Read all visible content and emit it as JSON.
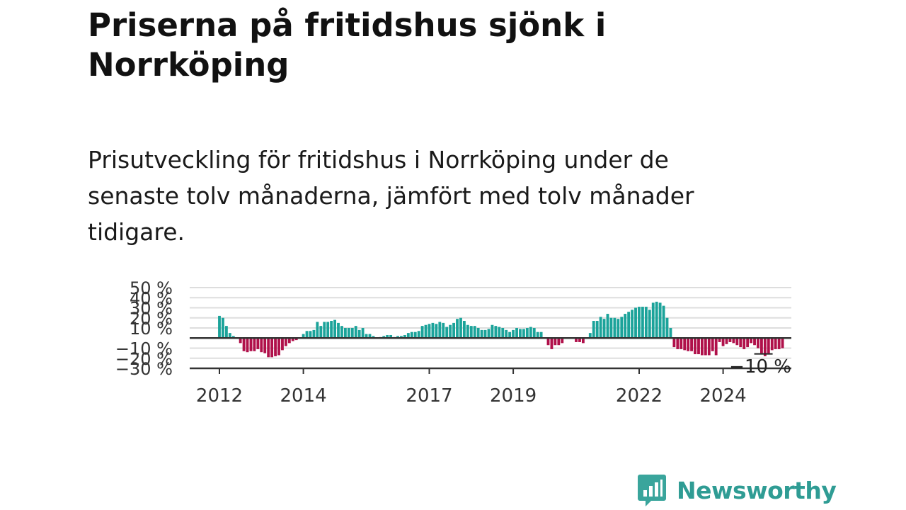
{
  "title": "Priserna på fritidshus sjönk i Norrköping",
  "subtitle": "Prisutveckling för fritidshus i Norrköping under de senaste tolv månaderna, jämfört med tolv månader tidigare.",
  "brand": {
    "name": "Newsworthy",
    "icon": "newsworthy-logo-icon",
    "color": "#3aa59c"
  },
  "colors": {
    "positive": "#1ba39a",
    "negative": "#b0104a",
    "zero_line": "#333333",
    "grid": "#dddddd"
  },
  "chart_data": {
    "type": "bar",
    "ylim": [
      -30,
      50
    ],
    "yticks": [
      -30,
      -20,
      -10,
      10,
      20,
      30,
      40,
      50
    ],
    "ytick_labels": [
      "−30 %",
      "−20 %",
      "−10 %",
      "10 %",
      "20 %",
      "30 %",
      "40 %",
      "50 %"
    ],
    "xticks": [
      2012,
      2014,
      2017,
      2019,
      2022,
      2024
    ],
    "x_start": 2012.0,
    "x_step": 0.08333,
    "last_value_label": "−10 %",
    "grid": true,
    "values": [
      22,
      20,
      12,
      5,
      2,
      0,
      -5,
      -13,
      -14,
      -13,
      -13,
      -11,
      -14,
      -15,
      -19,
      -19,
      -18,
      -17,
      -12,
      -8,
      -5,
      -3,
      -2,
      0,
      4,
      7,
      7,
      8,
      16,
      12,
      16,
      16,
      17,
      18,
      15,
      12,
      10,
      10,
      10,
      12,
      8,
      10,
      4,
      4,
      2,
      0,
      1,
      2,
      3,
      3,
      1,
      2,
      2,
      3,
      5,
      6,
      6,
      7,
      12,
      13,
      14,
      15,
      14,
      16,
      15,
      11,
      13,
      15,
      19,
      20,
      17,
      13,
      12,
      12,
      10,
      8,
      8,
      9,
      13,
      12,
      11,
      10,
      8,
      6,
      8,
      10,
      9,
      9,
      10,
      11,
      10,
      6,
      6,
      0,
      -7,
      -11,
      -7,
      -7,
      -5,
      0,
      0,
      0,
      -4,
      -4,
      -5,
      0,
      5,
      17,
      17,
      21,
      19,
      24,
      20,
      20,
      19,
      21,
      24,
      26,
      28,
      30,
      31,
      31,
      31,
      28,
      35,
      36,
      35,
      32,
      20,
      10,
      -9,
      -11,
      -11,
      -12,
      -13,
      -13,
      -16,
      -16,
      -17,
      -17,
      -17,
      -13,
      -17,
      -4,
      -8,
      -6,
      -4,
      -5,
      -7,
      -9,
      -11,
      -9,
      -5,
      -7,
      -10,
      -15,
      -18,
      -15,
      -12,
      -11,
      -11,
      -10
    ]
  }
}
